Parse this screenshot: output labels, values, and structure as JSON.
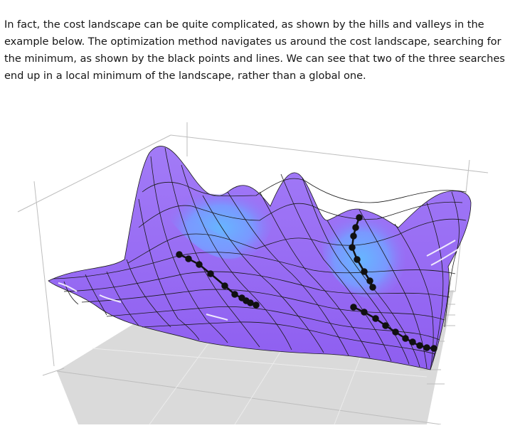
{
  "paragraph": {
    "text": "In fact, the cost landscape can be quite complicated, as shown by the hills and valleys in the example below. The optimization method navigates us around the cost landscape, searching for the minimum, as shown by the black points and lines. We can see that two of the three searches end up in a local minimum of the landscape, rather than a global one."
  },
  "figure": {
    "colors": {
      "surface_purple": "#9b6cf5",
      "surface_blue": "#6fa8ff",
      "mesh": "#1a1a1a",
      "floor": "#d9d9d9",
      "path": "#111111"
    }
  }
}
